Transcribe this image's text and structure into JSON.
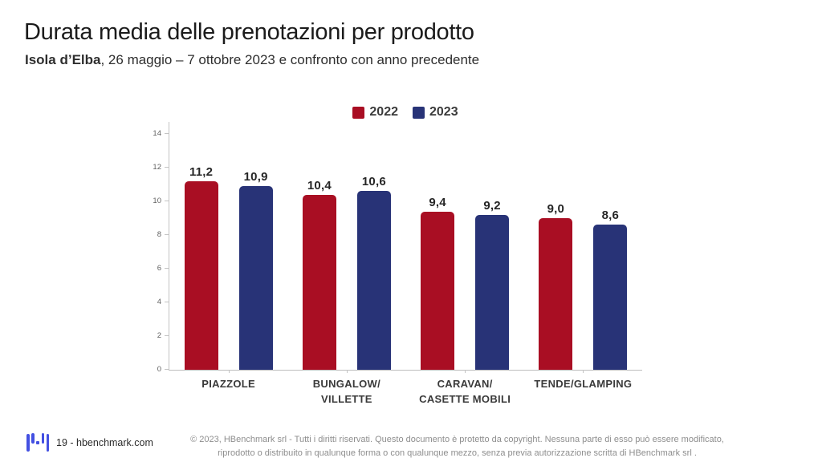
{
  "slide": {
    "title": "Durata media delle prenotazioni per prodotto",
    "subtitle_bold": "Isola d’Elba",
    "subtitle_rest": ", 26 maggio – 7 ottobre 2023 e confronto con anno precedente"
  },
  "chart_data": {
    "type": "bar",
    "title": "Durata media delle prenotazioni per prodotto",
    "categories": [
      "PIAZZOLE",
      "BUNGALOW/\nVILLETTE",
      "CARAVAN/\nCASETTE MOBILI",
      "TENDE/GLAMPING"
    ],
    "series": [
      {
        "name": "2022",
        "color": "#a90e23",
        "values": [
          11.2,
          10.4,
          9.4,
          9.0
        ]
      },
      {
        "name": "2023",
        "color": "#283377",
        "values": [
          10.9,
          10.6,
          9.2,
          8.6
        ]
      }
    ],
    "ylim": [
      0,
      14
    ],
    "yticks": [
      0,
      2,
      4,
      6,
      8,
      10,
      12,
      14
    ],
    "decimal_separator": ",",
    "legend_position": "top",
    "grid": false,
    "xlabel": "",
    "ylabel": ""
  },
  "footer": {
    "logo_icon": "hbenchmark-waveform-logo",
    "logo_color": "#4350e2",
    "page_label": "19 - hbenchmark.com",
    "copyright_line1": "© 2023, HBenchmark srl - Tutti i diritti riservati. Questo documento è protetto da copyright. Nessuna parte di esso può essere modificato,",
    "copyright_line2": "riprodotto o distribuito in qualunque forma o con qualunque mezzo, senza previa autorizzazione scritta di HBenchmark srl ."
  }
}
